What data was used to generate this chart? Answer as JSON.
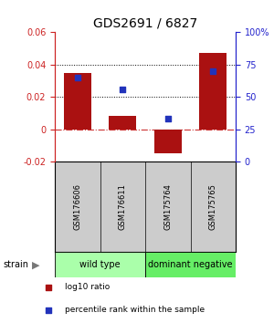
{
  "title": "GDS2691 / 6827",
  "samples": [
    "GSM176606",
    "GSM176611",
    "GSM175764",
    "GSM175765"
  ],
  "log10_ratio": [
    0.035,
    0.008,
    -0.015,
    0.047
  ],
  "percentile_pct": [
    65,
    56,
    33,
    70
  ],
  "ylim_left": [
    -0.02,
    0.06
  ],
  "yticks_left": [
    -0.02,
    0.0,
    0.02,
    0.04,
    0.06
  ],
  "ytick_labels_left": [
    "-0.02",
    "0",
    "0.02",
    "0.04",
    "0.06"
  ],
  "yticks_right_pct": [
    0,
    25,
    50,
    75,
    100
  ],
  "ytick_labels_right": [
    "0",
    "25",
    "50",
    "75",
    "100%"
  ],
  "hlines": [
    0.04,
    0.02
  ],
  "bar_color": "#aa1111",
  "dot_color": "#2233bb",
  "bar_width": 0.6,
  "strain_groups": [
    {
      "label": "wild type",
      "samples": [
        0,
        1
      ],
      "color": "#aaffaa"
    },
    {
      "label": "dominant negative",
      "samples": [
        2,
        3
      ],
      "color": "#66ee66"
    }
  ],
  "legend_items": [
    {
      "color": "#aa1111",
      "label": "log10 ratio"
    },
    {
      "color": "#2233bb",
      "label": "percentile rank within the sample"
    }
  ],
  "background_color": "#ffffff",
  "left_axis_color": "#cc2222",
  "right_axis_color": "#2222cc",
  "zero_line_color": "#cc3333",
  "label_bg_color": "#cccccc",
  "tick_fontsize": 7,
  "title_fontsize": 10,
  "sample_fontsize": 6,
  "legend_fontsize": 6.5,
  "group_fontsize": 7
}
